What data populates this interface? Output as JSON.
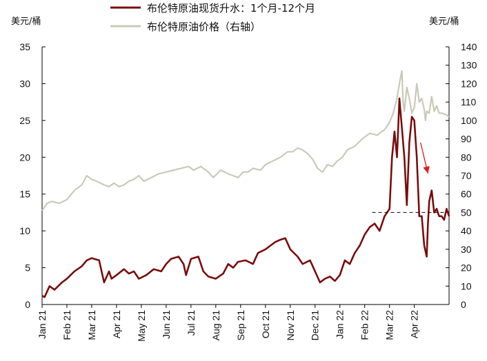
{
  "chart_data": {
    "type": "line",
    "left_unit": "美元/桶",
    "right_unit": "美元/桶",
    "left_axis": {
      "min": 0,
      "max": 35,
      "step": 5,
      "ticks": [
        "0",
        "5",
        "10",
        "15",
        "20",
        "25",
        "30",
        "35"
      ]
    },
    "right_axis": {
      "min": 0,
      "max": 140,
      "step": 10,
      "ticks": [
        "0",
        "10",
        "20",
        "30",
        "40",
        "50",
        "60",
        "70",
        "80",
        "90",
        "100",
        "110",
        "120",
        "130",
        "140"
      ]
    },
    "x_labels": [
      "Jan 21",
      "Feb 21",
      "Mar 21",
      "Apr 21",
      "May 21",
      "Jun 21",
      "Jul 21",
      "Aug 21",
      "Sep 21",
      "Oct 21",
      "Nov 21",
      "Dec 21",
      "Jan 22",
      "Feb 22",
      "Mar 22",
      "Apr 22"
    ],
    "series": [
      {
        "name": "布伦特原油现货升水：1个月-12个月",
        "axis": "left",
        "color": "#7a0c0c",
        "x": [
          0.0,
          0.1,
          0.3,
          0.5,
          0.8,
          1.0,
          1.3,
          1.6,
          1.8,
          2.0,
          2.3,
          2.5,
          2.7,
          2.8,
          3.0,
          3.3,
          3.5,
          3.7,
          3.9,
          4.2,
          4.5,
          4.8,
          5.0,
          5.2,
          5.5,
          5.7,
          5.8,
          6.0,
          6.3,
          6.5,
          6.7,
          7.0,
          7.3,
          7.5,
          7.7,
          7.9,
          8.2,
          8.5,
          8.7,
          9.0,
          9.2,
          9.4,
          9.6,
          9.8,
          10.0,
          10.3,
          10.5,
          10.8,
          11.0,
          11.2,
          11.4,
          11.6,
          11.8,
          12.0,
          12.2,
          12.4,
          12.6,
          12.8,
          13.0,
          13.2,
          13.4,
          13.6,
          13.8,
          14.0,
          14.05,
          14.1,
          14.2,
          14.3,
          14.35,
          14.4,
          14.5,
          14.6,
          14.7,
          14.8,
          14.9,
          15.0,
          15.1,
          15.2,
          15.3,
          15.35,
          15.4,
          15.5,
          15.55,
          15.6,
          15.7,
          15.8,
          15.9,
          16.0,
          16.1,
          16.2,
          16.3,
          16.4
        ],
        "values": [
          1.2,
          1.0,
          2.5,
          2.0,
          3.0,
          3.5,
          4.5,
          5.2,
          6.0,
          6.3,
          6.0,
          3.0,
          4.5,
          3.5,
          4.0,
          4.8,
          4.2,
          4.5,
          3.5,
          4.0,
          4.8,
          4.5,
          5.5,
          6.2,
          6.5,
          5.5,
          4.0,
          6.2,
          6.5,
          4.5,
          3.8,
          3.5,
          4.2,
          5.5,
          5.0,
          5.8,
          6.0,
          5.5,
          7.0,
          7.5,
          8.0,
          8.5,
          8.8,
          9.0,
          7.5,
          6.5,
          5.5,
          6.0,
          4.5,
          3.0,
          3.5,
          3.8,
          3.2,
          4.0,
          6.0,
          5.5,
          7.0,
          8.0,
          9.5,
          10.5,
          11.0,
          10.0,
          12.0,
          13.0,
          16.5,
          20.0,
          23.5,
          20.0,
          24.0,
          28.0,
          24.0,
          20.0,
          13.5,
          22.0,
          25.5,
          25.0,
          20.0,
          12.0,
          12.0,
          10.0,
          8.0,
          6.5,
          11.0,
          14.0,
          15.5,
          12.5,
          13.0,
          12.0,
          12.0,
          11.5,
          13.0,
          12.0
        ]
      },
      {
        "name": "布伦特原油价格（右轴）",
        "axis": "right",
        "color": "#c9c9b9",
        "x": [
          0.0,
          0.2,
          0.4,
          0.7,
          1.0,
          1.3,
          1.6,
          1.8,
          2.0,
          2.2,
          2.5,
          2.7,
          2.9,
          3.1,
          3.3,
          3.5,
          3.7,
          3.9,
          4.1,
          4.4,
          4.7,
          5.0,
          5.3,
          5.6,
          5.9,
          6.1,
          6.4,
          6.7,
          6.9,
          7.2,
          7.5,
          7.7,
          7.9,
          8.1,
          8.3,
          8.5,
          8.8,
          9.0,
          9.3,
          9.6,
          9.9,
          10.1,
          10.3,
          10.5,
          10.7,
          10.9,
          11.1,
          11.3,
          11.5,
          11.7,
          11.9,
          12.1,
          12.3,
          12.6,
          12.9,
          13.2,
          13.5,
          13.8,
          14.0,
          14.15,
          14.3,
          14.4,
          14.5,
          14.55,
          14.6,
          14.7,
          14.8,
          14.9,
          15.0,
          15.1,
          15.2,
          15.3,
          15.4,
          15.45,
          15.5,
          15.6,
          15.7,
          15.8,
          15.9,
          16.0,
          16.1,
          16.3,
          16.4
        ],
        "values": [
          51,
          55,
          56,
          55,
          57,
          62,
          65,
          70,
          68,
          67,
          65,
          64,
          66,
          64,
          65,
          67,
          68,
          70,
          67,
          69,
          71,
          72,
          73,
          74,
          75,
          73,
          75,
          72,
          69,
          73,
          71,
          70,
          69,
          72,
          72,
          74,
          73,
          76,
          78,
          80,
          83,
          83,
          85,
          84,
          82,
          79,
          74,
          72,
          76,
          75,
          78,
          80,
          84,
          86,
          90,
          93,
          92,
          95,
          99,
          104,
          112,
          120,
          127,
          110,
          105,
          118,
          112,
          104,
          107,
          120,
          110,
          112,
          106,
          100,
          105,
          104,
          113,
          105,
          108,
          104,
          104,
          103,
          102
        ]
      }
    ],
    "annotations": {
      "dashed_line_value_left": 12.5,
      "dashed_line_from_x": 13.3,
      "dashed_line_to_x": 16.2,
      "arrow_start_x": 15.25,
      "arrow_start_y": 22.0,
      "arrow_end_x": 15.55,
      "arrow_end_y": 17.8,
      "arrow_color": "#e01b1b"
    }
  }
}
